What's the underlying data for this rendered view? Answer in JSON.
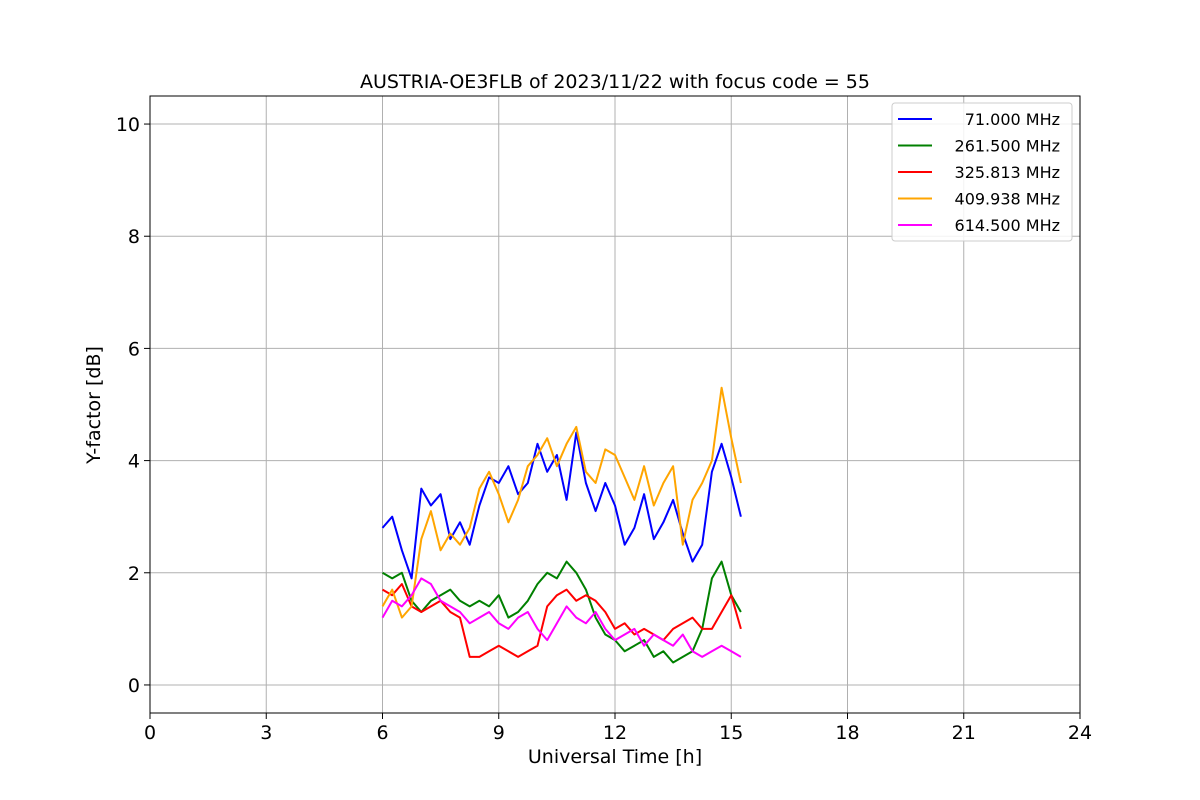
{
  "chart_data": {
    "type": "line",
    "title": "AUSTRIA-OE3FLB of 2023/11/22 with focus code = 55",
    "xlabel": "Universal Time [h]",
    "ylabel": "Y-factor [dB]",
    "xlim": [
      0,
      24
    ],
    "ylim": [
      -0.5,
      10.5
    ],
    "xticks": [
      0,
      3,
      6,
      9,
      12,
      15,
      18,
      21,
      24
    ],
    "yticks": [
      0,
      2,
      4,
      6,
      8,
      10
    ],
    "grid": true,
    "legend_position": "top-right",
    "x": [
      6.0,
      6.25,
      6.5,
      6.75,
      7.0,
      7.25,
      7.5,
      7.75,
      8.0,
      8.25,
      8.5,
      8.75,
      9.0,
      9.25,
      9.5,
      9.75,
      10.0,
      10.25,
      10.5,
      10.75,
      11.0,
      11.25,
      11.5,
      11.75,
      12.0,
      12.25,
      12.5,
      12.75,
      13.0,
      13.25,
      13.5,
      13.75,
      14.0,
      14.25,
      14.5,
      14.75,
      15.0,
      15.25
    ],
    "series": [
      {
        "name": "71.000 MHz",
        "color": "#0000ff",
        "values": [
          2.8,
          3.0,
          2.4,
          1.9,
          3.5,
          3.2,
          3.4,
          2.6,
          2.9,
          2.5,
          3.2,
          3.7,
          3.6,
          3.9,
          3.4,
          3.6,
          4.3,
          3.8,
          4.1,
          3.3,
          4.5,
          3.6,
          3.1,
          3.6,
          3.2,
          2.5,
          2.8,
          3.4,
          2.6,
          2.9,
          3.3,
          2.7,
          2.2,
          2.5,
          3.8,
          4.3,
          3.7,
          3.0
        ]
      },
      {
        "name": "261.500 MHz",
        "color": "#008000",
        "values": [
          2.0,
          1.9,
          2.0,
          1.5,
          1.3,
          1.5,
          1.6,
          1.7,
          1.5,
          1.4,
          1.5,
          1.4,
          1.6,
          1.2,
          1.3,
          1.5,
          1.8,
          2.0,
          1.9,
          2.2,
          2.0,
          1.7,
          1.2,
          0.9,
          0.8,
          0.6,
          0.7,
          0.8,
          0.5,
          0.6,
          0.4,
          0.5,
          0.6,
          1.0,
          1.9,
          2.2,
          1.6,
          1.3
        ]
      },
      {
        "name": "325.813 MHz",
        "color": "#ff0000",
        "values": [
          1.7,
          1.6,
          1.8,
          1.4,
          1.3,
          1.4,
          1.5,
          1.3,
          1.2,
          0.5,
          0.5,
          0.6,
          0.7,
          0.6,
          0.5,
          0.6,
          0.7,
          1.4,
          1.6,
          1.7,
          1.5,
          1.6,
          1.5,
          1.3,
          1.0,
          1.1,
          0.9,
          1.0,
          0.9,
          0.8,
          1.0,
          1.1,
          1.2,
          1.0,
          1.0,
          1.3,
          1.6,
          1.0
        ]
      },
      {
        "name": "409.938 MHz",
        "color": "#ffa500",
        "values": [
          1.4,
          1.7,
          1.2,
          1.4,
          2.6,
          3.1,
          2.4,
          2.7,
          2.5,
          2.8,
          3.5,
          3.8,
          3.4,
          2.9,
          3.3,
          3.9,
          4.1,
          4.4,
          3.9,
          4.3,
          4.6,
          3.8,
          3.6,
          4.2,
          4.1,
          3.7,
          3.3,
          3.9,
          3.2,
          3.6,
          3.9,
          2.5,
          3.3,
          3.6,
          4.0,
          5.3,
          4.4,
          3.6
        ]
      },
      {
        "name": "614.500 MHz",
        "color": "#ff00ff",
        "values": [
          1.2,
          1.5,
          1.4,
          1.6,
          1.9,
          1.8,
          1.5,
          1.4,
          1.3,
          1.1,
          1.2,
          1.3,
          1.1,
          1.0,
          1.2,
          1.3,
          1.0,
          0.8,
          1.1,
          1.4,
          1.2,
          1.1,
          1.3,
          1.0,
          0.8,
          0.9,
          1.0,
          0.7,
          0.9,
          0.8,
          0.7,
          0.9,
          0.6,
          0.5,
          0.6,
          0.7,
          0.6,
          0.5
        ]
      }
    ]
  }
}
